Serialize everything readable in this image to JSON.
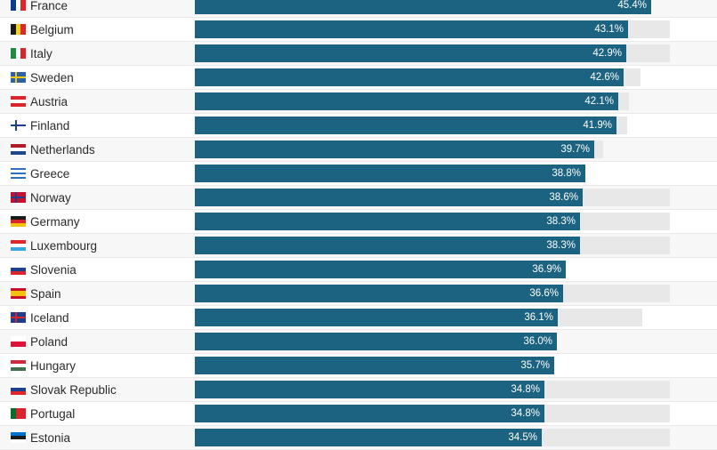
{
  "chart_data": {
    "type": "bar",
    "orientation": "horizontal",
    "title": "",
    "xlabel": "",
    "ylabel": "",
    "xlim": [
      0,
      49
    ],
    "bar_color": "#1c6381",
    "track_color": "#e8e8e8",
    "categories": [
      "France",
      "Belgium",
      "Italy",
      "Sweden",
      "Austria",
      "Finland",
      "Netherlands",
      "Greece",
      "Norway",
      "Germany",
      "Luxembourg",
      "Slovenia",
      "Spain",
      "Iceland",
      "Poland",
      "Hungary",
      "Slovak Republic",
      "Portugal",
      "Estonia"
    ],
    "values": [
      45.4,
      43.1,
      42.9,
      42.6,
      42.1,
      41.9,
      39.7,
      38.8,
      38.6,
      38.3,
      38.3,
      36.9,
      36.6,
      36.1,
      36.0,
      35.7,
      34.8,
      34.8,
      34.5
    ],
    "value_labels": [
      "45.4%",
      "43.1%",
      "42.9%",
      "42.6%",
      "42.1%",
      "41.9%",
      "39.7%",
      "38.8%",
      "38.6%",
      "38.3%",
      "38.3%",
      "36.9%",
      "36.6%",
      "36.1%",
      "36.0%",
      "35.7%",
      "34.8%",
      "34.8%",
      "34.5%"
    ],
    "track_max": [
      null,
      47.2,
      47.2,
      44.3,
      43.2,
      43.0,
      40.6,
      null,
      47.2,
      47.2,
      47.2,
      null,
      47.2,
      44.5,
      null,
      null,
      47.2,
      47.2,
      47.2
    ]
  },
  "flags": [
    {
      "dir": "v",
      "colors": [
        "#0a3d91",
        "#ffffff",
        "#e2242b"
      ]
    },
    {
      "dir": "v",
      "colors": [
        "#1a1a1a",
        "#f4d21f",
        "#e2242b"
      ]
    },
    {
      "dir": "v",
      "colors": [
        "#1f8c42",
        "#ffffff",
        "#d9252b"
      ]
    },
    {
      "dir": "nordic",
      "colors": [
        "#2b62a8",
        "#f5c518"
      ]
    },
    {
      "dir": "h",
      "colors": [
        "#d9252b",
        "#ffffff",
        "#d9252b"
      ]
    },
    {
      "dir": "nordic",
      "colors": [
        "#ffffff",
        "#1c3f8e"
      ]
    },
    {
      "dir": "h",
      "colors": [
        "#ae1c28",
        "#ffffff",
        "#21468b"
      ]
    },
    {
      "dir": "h",
      "colors": [
        "#2f6fc0",
        "#ffffff",
        "#2f6fc0",
        "#ffffff",
        "#2f6fc0"
      ]
    },
    {
      "dir": "nordic",
      "colors": [
        "#c8102e",
        "#1c3f8e"
      ]
    },
    {
      "dir": "h",
      "colors": [
        "#1a1a1a",
        "#d9252b",
        "#f4c20f"
      ]
    },
    {
      "dir": "h",
      "colors": [
        "#e2242b",
        "#ffffff",
        "#3aa6dc"
      ]
    },
    {
      "dir": "h",
      "colors": [
        "#ffffff",
        "#1c3f8e",
        "#d9252b"
      ]
    },
    {
      "dir": "h",
      "colors": [
        "#c8102e",
        "#f4c20f",
        "#f4c20f",
        "#c8102e"
      ]
    },
    {
      "dir": "nordic",
      "colors": [
        "#1c3f8e",
        "#d9252b"
      ]
    },
    {
      "dir": "h",
      "colors": [
        "#ffffff",
        "#dc143c"
      ]
    },
    {
      "dir": "h",
      "colors": [
        "#cd2a3e",
        "#ffffff",
        "#436f4d"
      ]
    },
    {
      "dir": "h",
      "colors": [
        "#ffffff",
        "#1c3f8e",
        "#e2242b"
      ]
    },
    {
      "dir": "v",
      "colors": [
        "#0a6b2e",
        "#d9252b",
        "#d9252b"
      ]
    },
    {
      "dir": "h",
      "colors": [
        "#0072ce",
        "#1a1a1a",
        "#ffffff"
      ]
    }
  ]
}
